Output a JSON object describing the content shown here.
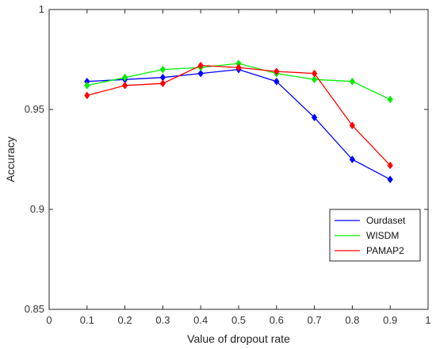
{
  "chart_data": {
    "type": "line",
    "xlabel": "Value of dropout rate",
    "ylabel": "Accuracy",
    "xlim": [
      0,
      1
    ],
    "ylim": [
      0.85,
      1
    ],
    "xticks": [
      "0",
      "0.1",
      "0.2",
      "0.3",
      "0.4",
      "0.5",
      "0.6",
      "0.7",
      "0.8",
      "0.9",
      "1"
    ],
    "yticks": [
      "0.85",
      "0.9",
      "0.95",
      "1"
    ],
    "grid": false,
    "legend_position": "bottom-right",
    "x": [
      0.1,
      0.2,
      0.3,
      0.4,
      0.5,
      0.6,
      0.7,
      0.8,
      0.9
    ],
    "series": [
      {
        "name": "Ourdaset",
        "color": "#0000ff",
        "values": [
          0.964,
          0.965,
          0.966,
          0.968,
          0.97,
          0.964,
          0.946,
          0.925,
          0.915
        ]
      },
      {
        "name": "WISDM",
        "color": "#00ee00",
        "values": [
          0.962,
          0.966,
          0.97,
          0.971,
          0.973,
          0.968,
          0.965,
          0.964,
          0.955
        ]
      },
      {
        "name": "PAMAP2",
        "color": "#ff0000",
        "values": [
          0.957,
          0.962,
          0.963,
          0.972,
          0.971,
          0.969,
          0.968,
          0.942,
          0.922
        ]
      }
    ]
  }
}
